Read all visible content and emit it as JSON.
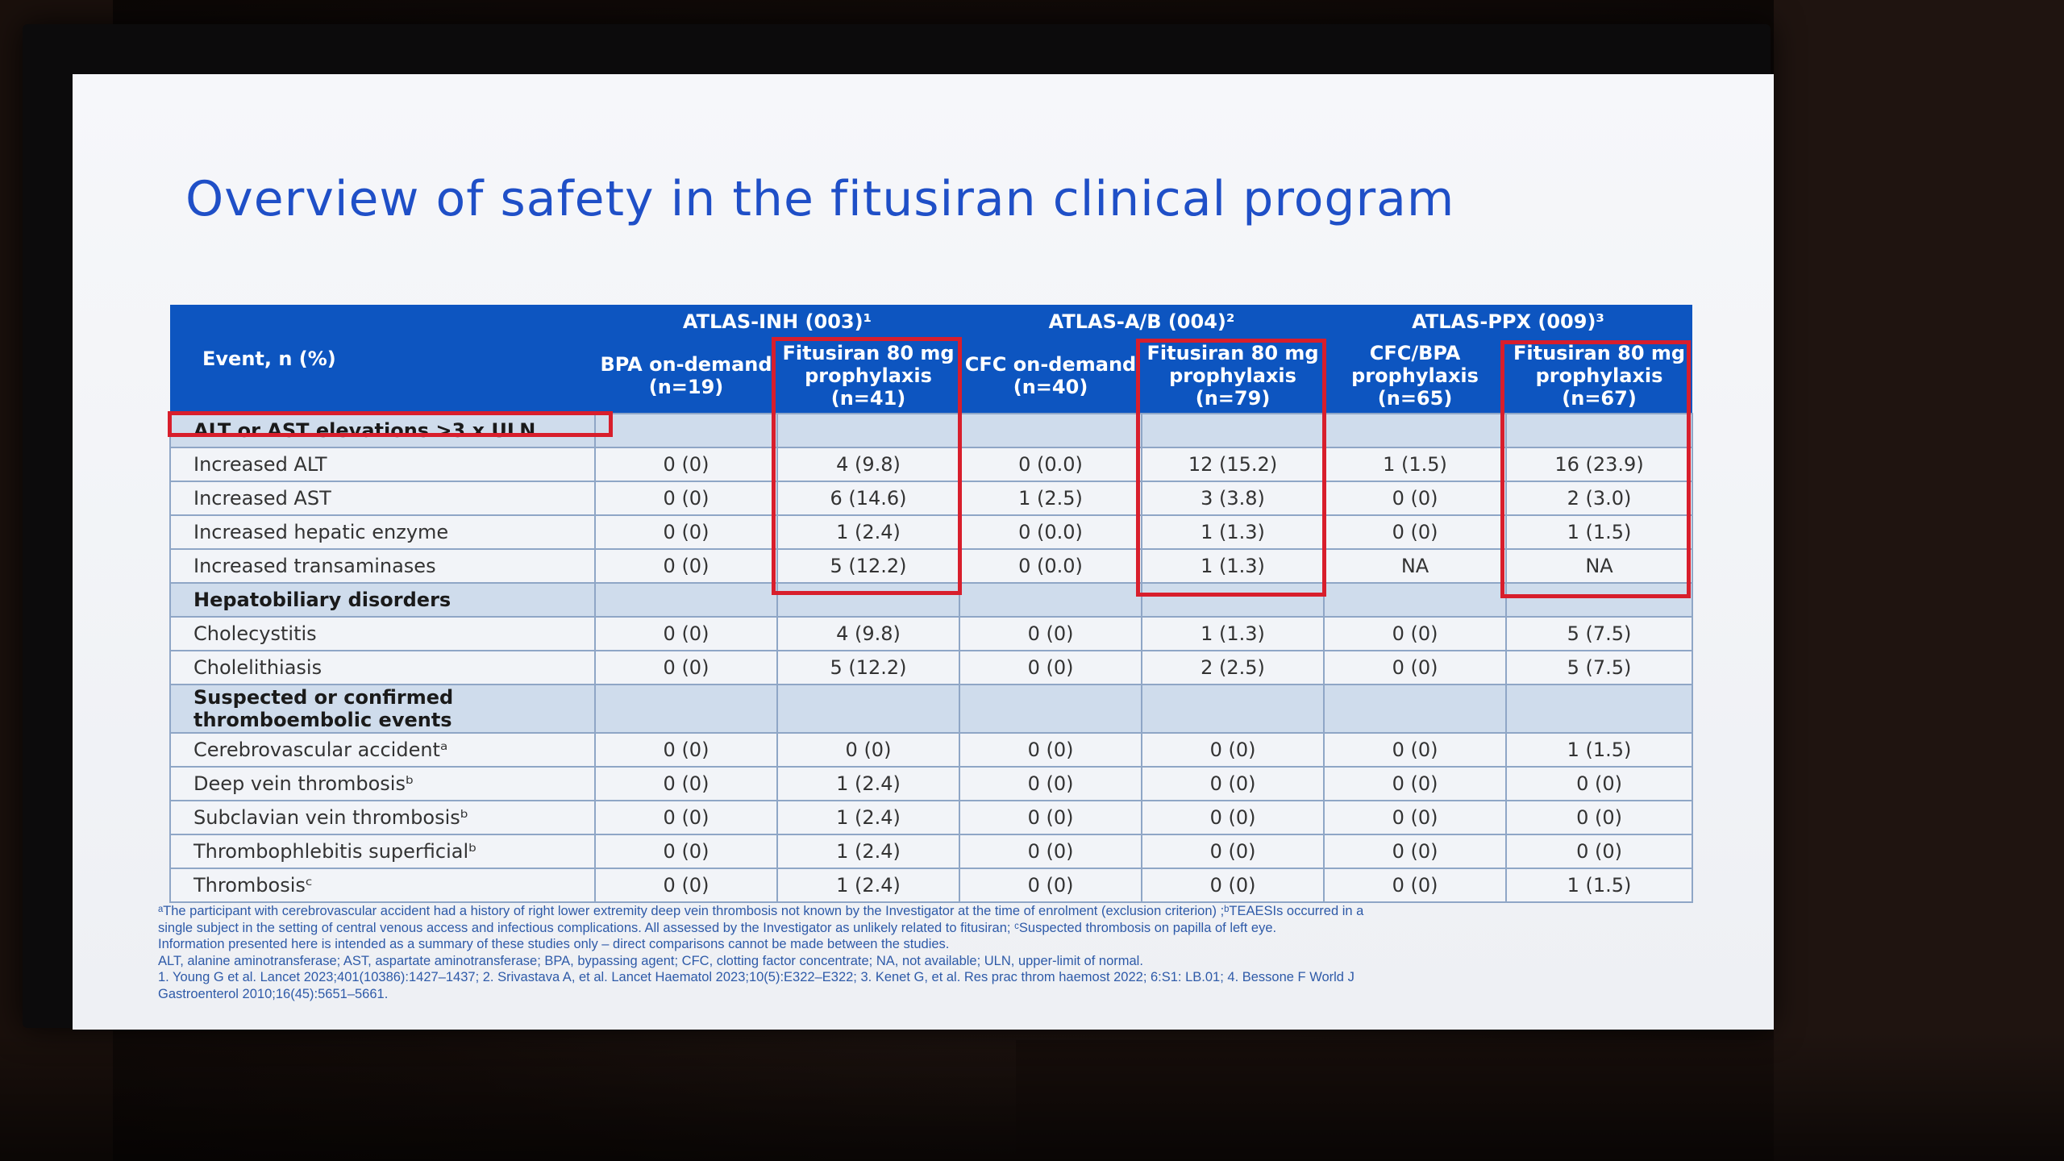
{
  "slide": {
    "title": "Overview of safety in the fitusiran clinical program"
  },
  "table": {
    "event_header": "Event, n (%)",
    "groups": [
      "ATLAS-INH (003)¹",
      "ATLAS-A/B (004)²",
      "ATLAS-PPX (009)³"
    ],
    "columns": [
      "BPA on-demand (n=19)",
      "Fitusiran 80 mg prophylaxis (n=41)",
      "CFC on-demand (n=40)",
      "Fitusiran 80 mg prophylaxis (n=79)",
      "CFC/BPA prophylaxis (n=65)",
      "Fitusiran 80 mg prophylaxis (n=67)"
    ],
    "sections": [
      {
        "title": "ALT or AST elevations >3 x ULN",
        "rows": [
          {
            "label": "Increased ALT",
            "values": [
              "0 (0)",
              "4 (9.8)",
              "0 (0.0)",
              "12 (15.2)",
              "1 (1.5)",
              "16 (23.9)"
            ]
          },
          {
            "label": "Increased AST",
            "values": [
              "0 (0)",
              "6 (14.6)",
              "1 (2.5)",
              "3 (3.8)",
              "0 (0)",
              "2 (3.0)"
            ]
          },
          {
            "label": "Increased hepatic enzyme",
            "values": [
              "0 (0)",
              "1 (2.4)",
              "0 (0.0)",
              "1 (1.3)",
              "0 (0)",
              "1 (1.5)"
            ]
          },
          {
            "label": "Increased transaminases",
            "values": [
              "0 (0)",
              "5 (12.2)",
              "0 (0.0)",
              "1 (1.3)",
              "NA",
              "NA"
            ]
          }
        ]
      },
      {
        "title": "Hepatobiliary disorders",
        "rows": [
          {
            "label": "Cholecystitis",
            "values": [
              "0 (0)",
              "4 (9.8)",
              "0 (0)",
              "1 (1.3)",
              "0 (0)",
              "5 (7.5)"
            ]
          },
          {
            "label": "Cholelithiasis",
            "values": [
              "0 (0)",
              "5 (12.2)",
              "0 (0)",
              "2 (2.5)",
              "0 (0)",
              "5 (7.5)"
            ]
          }
        ]
      },
      {
        "title": "Suspected or confirmed thromboembolic events",
        "rows": [
          {
            "label": "Cerebrovascular accidentᵃ",
            "values": [
              "0 (0)",
              "0 (0)",
              "0 (0)",
              "0 (0)",
              "0 (0)",
              "1 (1.5)"
            ]
          },
          {
            "label": "Deep vein thrombosisᵇ",
            "values": [
              "0 (0)",
              "1 (2.4)",
              "0 (0)",
              "0 (0)",
              "0 (0)",
              "0 (0)"
            ]
          },
          {
            "label": "Subclavian vein thrombosisᵇ",
            "values": [
              "0 (0)",
              "1 (2.4)",
              "0 (0)",
              "0 (0)",
              "0 (0)",
              "0 (0)"
            ]
          },
          {
            "label": "Thrombophlebitis superficialᵇ",
            "values": [
              "0 (0)",
              "1 (2.4)",
              "0 (0)",
              "0 (0)",
              "0 (0)",
              "0 (0)"
            ]
          },
          {
            "label": "Thrombosisᶜ",
            "values": [
              "0 (0)",
              "1 (2.4)",
              "0 (0)",
              "0 (0)",
              "0 (0)",
              "1 (1.5)"
            ]
          }
        ]
      }
    ]
  },
  "footnotes": {
    "line1": "ᵃThe participant with cerebrovascular accident had a history of right lower extremity deep vein thrombosis not known by the Investigator at the time of enrolment (exclusion criterion) ;ᵇTEAESIs occurred in a",
    "line2": "single subject in the setting of central venous access and infectious complications. All assessed by the Investigator as unlikely related to fitusiran; ᶜSuspected thrombosis on papilla of left eye.",
    "line3": "Information presented here is intended as a summary of these studies only – direct comparisons cannot be made between the studies.",
    "line4": "ALT, alanine aminotransferase; AST, aspartate aminotransferase; BPA, bypassing agent; CFC, clotting factor concentrate; NA, not available; ULN, upper-limit of normal.",
    "line5": "1. Young G et al. Lancet 2023;401(10386):1427–1437; 2. Srivastava A, et al. Lancet Haematol 2023;10(5):E322–E322; 3. Kenet G, et al. Res prac throm haemost 2022; 6:S1: LB.01; 4. Bessone F World J",
    "line6": "Gastroenterol 2010;16(45):5651–5661."
  },
  "colors": {
    "header_blue": "#0d55c0",
    "title_blue": "#1f4fc7",
    "highlight_red": "#d81e2c",
    "section_band": "#cfdcec"
  }
}
